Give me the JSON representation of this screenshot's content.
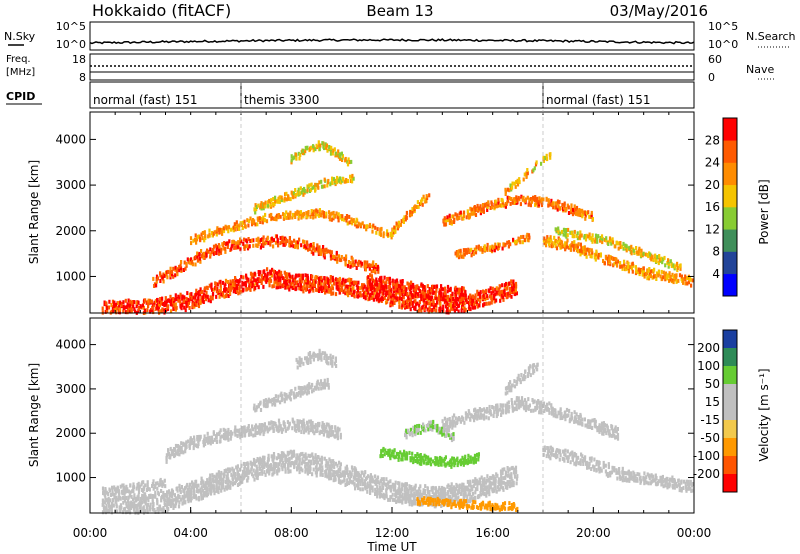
{
  "header": {
    "station": "Hokkaido (fitACF)",
    "beam": "Beam 13",
    "date": "03/May/2016"
  },
  "noise_panel": {
    "left_label": "N.Sky",
    "right_label": "N.Search",
    "left_ticks": [
      "10^5",
      "10^0"
    ],
    "right_ticks": [
      "10^5",
      "10^0"
    ]
  },
  "freq_panel": {
    "left_label_1": "Freq.",
    "left_label_2": "[MHz]",
    "right_label": "Nave",
    "left_ticks": [
      "18",
      "8"
    ],
    "right_ticks": [
      "60",
      "0"
    ]
  },
  "cpid_panel": {
    "label": "CPID",
    "segments": [
      {
        "label": "normal (fast) 151",
        "start_hour": 0,
        "end_hour": 6
      },
      {
        "label": "themis 3300",
        "start_hour": 6,
        "end_hour": 18
      },
      {
        "label": "normal (fast) 151",
        "start_hour": 18,
        "end_hour": 24
      }
    ]
  },
  "colors": {
    "power": [
      "#0000ff",
      "#224499",
      "#3f8f5a",
      "#88cc33",
      "#f5c400",
      "#ff8c00",
      "#ff5a00",
      "#ff0000"
    ],
    "velocity": [
      "#ff0000",
      "#ff5500",
      "#ff9900",
      "#f2c94c",
      "#c0c0c0",
      "#c0c0c0",
      "#66cc33",
      "#2e8b57",
      "#1a3fa0"
    ]
  },
  "chart_data": [
    {
      "type": "heatmap",
      "panel": "power",
      "xlabel": "",
      "ylabel": "Slant Range [km]",
      "yticks": [
        "1000",
        "2000",
        "3000",
        "4000"
      ],
      "ylim": [
        200,
        4600
      ],
      "xlim": [
        0,
        24
      ],
      "colorbar_label": "Power [dB]",
      "colorbar_ticks": [
        "4",
        "8",
        "12",
        "16",
        "20",
        "24",
        "28"
      ],
      "colorbar_range": [
        0,
        32
      ],
      "bands": [
        {
          "points": [
            [
              0.5,
              280
            ],
            [
              1.0,
              300
            ],
            [
              2.0,
              320
            ],
            [
              3.0,
              380
            ],
            [
              4.0,
              500
            ],
            [
              5.0,
              700
            ],
            [
              6.0,
              850
            ],
            [
              7.0,
              1000
            ],
            [
              8.0,
              900
            ],
            [
              9.0,
              850
            ],
            [
              10.0,
              800
            ],
            [
              11.0,
              700
            ],
            [
              12.0,
              550
            ],
            [
              13.0,
              450
            ],
            [
              14.0,
              400
            ],
            [
              15.0,
              450
            ],
            [
              16.0,
              600
            ],
            [
              17.0,
              800
            ]
          ],
          "width": 350,
          "value": 28
        },
        {
          "points": [
            [
              2.5,
              900
            ],
            [
              3.5,
              1200
            ],
            [
              4.5,
              1500
            ],
            [
              5.5,
              1700
            ],
            [
              6.5,
              1750
            ],
            [
              7.5,
              1800
            ],
            [
              8.5,
              1700
            ],
            [
              9.5,
              1500
            ],
            [
              10.5,
              1300
            ],
            [
              11.5,
              1200
            ]
          ],
          "width": 200,
          "value": 26
        },
        {
          "points": [
            [
              4.0,
              1800
            ],
            [
              5.0,
              2000
            ],
            [
              6.0,
              2150
            ],
            [
              7.0,
              2300
            ],
            [
              8.0,
              2350
            ],
            [
              9.0,
              2400
            ],
            [
              10.0,
              2300
            ],
            [
              11.0,
              2100
            ],
            [
              12.0,
              1900
            ]
          ],
          "width": 150,
          "value": 22
        },
        {
          "points": [
            [
              6.5,
              2500
            ],
            [
              7.5,
              2700
            ],
            [
              8.5,
              2900
            ],
            [
              9.5,
              3100
            ],
            [
              10.5,
              3150
            ]
          ],
          "width": 150,
          "value": 18
        },
        {
          "points": [
            [
              8.0,
              3600
            ],
            [
              8.6,
              3800
            ],
            [
              9.2,
              3900
            ],
            [
              9.8,
              3700
            ],
            [
              10.4,
              3450
            ]
          ],
          "width": 150,
          "value": 18
        },
        {
          "points": [
            [
              12.0,
              2000
            ],
            [
              12.5,
              2300
            ],
            [
              13.0,
              2600
            ],
            [
              13.5,
              2800
            ]
          ],
          "width": 140,
          "value": 22
        },
        {
          "points": [
            [
              14.0,
              2200
            ],
            [
              15.0,
              2400
            ],
            [
              16.0,
              2600
            ],
            [
              17.0,
              2700
            ],
            [
              18.0,
              2650
            ],
            [
              19.0,
              2500
            ],
            [
              20.0,
              2300
            ]
          ],
          "width": 180,
          "value": 24
        },
        {
          "points": [
            [
              16.5,
              2900
            ],
            [
              17.2,
              3200
            ],
            [
              17.8,
              3500
            ],
            [
              18.3,
              3700
            ]
          ],
          "width": 130,
          "value": 20
        },
        {
          "points": [
            [
              18.0,
              1800
            ],
            [
              19.0,
              1700
            ],
            [
              20.0,
              1500
            ],
            [
              21.0,
              1300
            ],
            [
              22.0,
              1100
            ],
            [
              23.0,
              1000
            ],
            [
              24.0,
              900
            ]
          ],
          "width": 200,
          "value": 22
        },
        {
          "points": [
            [
              18.5,
              2000
            ],
            [
              19.5,
              1900
            ],
            [
              20.5,
              1800
            ],
            [
              21.5,
              1600
            ],
            [
              22.5,
              1400
            ],
            [
              23.5,
              1200
            ]
          ],
          "width": 150,
          "value": 18
        },
        {
          "points": [
            [
              14.5,
              1500
            ],
            [
              15.5,
              1600
            ],
            [
              16.5,
              1700
            ],
            [
              17.5,
              1900
            ]
          ],
          "width": 150,
          "value": 24
        },
        {
          "points": [
            [
              11.0,
              900
            ],
            [
              12.0,
              800
            ],
            [
              13.0,
              700
            ],
            [
              14.0,
              650
            ],
            [
              15.0,
              600
            ]
          ],
          "width": 300,
          "value": 29
        }
      ]
    },
    {
      "type": "heatmap",
      "panel": "velocity",
      "xlabel": "Time UT",
      "ylabel": "Slant Range [km]",
      "yticks": [
        "1000",
        "2000",
        "3000",
        "4000"
      ],
      "ylim": [
        200,
        4600
      ],
      "xlim": [
        0,
        24
      ],
      "xticks": [
        "00:00",
        "04:00",
        "08:00",
        "12:00",
        "16:00",
        "20:00",
        "00:00"
      ],
      "colorbar_label": "Velocity [m s⁻¹]",
      "colorbar_ticks": [
        "200",
        "100",
        "50",
        "15",
        "-15",
        "-50",
        "-100",
        "-200"
      ],
      "bands": [
        {
          "points": [
            [
              0.5,
              350
            ],
            [
              2.0,
              400
            ],
            [
              3.0,
              500
            ],
            [
              4.0,
              700
            ],
            [
              5.0,
              900
            ],
            [
              6.0,
              1100
            ],
            [
              7.0,
              1300
            ],
            [
              8.0,
              1400
            ],
            [
              9.0,
              1300
            ],
            [
              10.0,
              1100
            ],
            [
              11.0,
              900
            ],
            [
              12.0,
              700
            ],
            [
              13.0,
              600
            ],
            [
              14.0,
              600
            ],
            [
              15.0,
              700
            ],
            [
              16.0,
              900
            ],
            [
              17.0,
              1100
            ]
          ],
          "width": 450,
          "value": 0
        },
        {
          "points": [
            [
              3.0,
              1500
            ],
            [
              4.0,
              1800
            ],
            [
              5.0,
              1950
            ],
            [
              6.0,
              2050
            ],
            [
              7.0,
              2150
            ],
            [
              8.0,
              2200
            ],
            [
              9.0,
              2150
            ],
            [
              10.0,
              2000
            ]
          ],
          "width": 250,
          "value": 0
        },
        {
          "points": [
            [
              6.5,
              2600
            ],
            [
              7.5,
              2800
            ],
            [
              8.5,
              3000
            ],
            [
              9.5,
              3150
            ]
          ],
          "width": 200,
          "value": 0
        },
        {
          "points": [
            [
              8.2,
              3600
            ],
            [
              9.0,
              3800
            ],
            [
              9.8,
              3600
            ]
          ],
          "width": 200,
          "value": 0
        },
        {
          "points": [
            [
              11.5,
              1600
            ],
            [
              12.5,
              1500
            ],
            [
              13.5,
              1400
            ],
            [
              14.5,
              1350
            ],
            [
              15.5,
              1500
            ]
          ],
          "width": 200,
          "value": 60
        },
        {
          "points": [
            [
              14.0,
              2200
            ],
            [
              15.0,
              2400
            ],
            [
              16.0,
              2500
            ],
            [
              17.0,
              2700
            ],
            [
              18.0,
              2600
            ],
            [
              19.0,
              2400
            ],
            [
              20.0,
              2200
            ],
            [
              21.0,
              2000
            ]
          ],
          "width": 250,
          "value": 0
        },
        {
          "points": [
            [
              16.5,
              3000
            ],
            [
              17.2,
              3300
            ],
            [
              17.8,
              3600
            ]
          ],
          "width": 180,
          "value": 0
        },
        {
          "points": [
            [
              18.0,
              1600
            ],
            [
              19.0,
              1500
            ],
            [
              20.0,
              1300
            ],
            [
              21.0,
              1100
            ],
            [
              22.0,
              1000
            ],
            [
              23.0,
              900
            ],
            [
              24.0,
              800
            ]
          ],
          "width": 250,
          "value": 0
        },
        {
          "points": [
            [
              12.5,
              2000
            ],
            [
              13.5,
              2200
            ],
            [
              14.5,
              1900
            ]
          ],
          "width": 180,
          "value": 30
        },
        {
          "points": [
            [
              0.5,
              700
            ],
            [
              2.0,
              800
            ],
            [
              3.0,
              900
            ]
          ],
          "width": 200,
          "value": 0
        },
        {
          "points": [
            [
              13.0,
              500
            ],
            [
              15.0,
              400
            ],
            [
              17.0,
              350
            ]
          ],
          "width": 150,
          "value": -40
        }
      ]
    }
  ]
}
